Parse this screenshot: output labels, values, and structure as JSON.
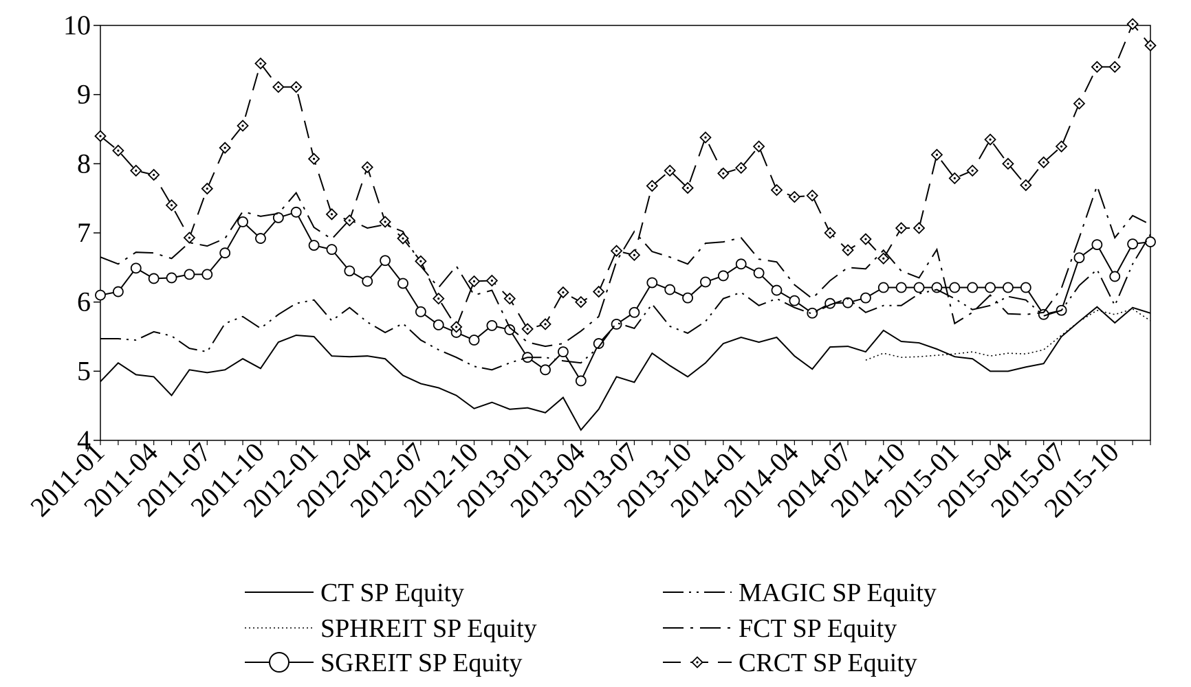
{
  "chart_data": {
    "type": "line",
    "title": "",
    "xlabel": "",
    "ylabel": "",
    "ylim": [
      4,
      10
    ],
    "yticks": [
      4,
      5,
      6,
      7,
      8,
      9,
      10
    ],
    "x": [
      "2011-01",
      "2011-02",
      "2011-03",
      "2011-04",
      "2011-05",
      "2011-06",
      "2011-07",
      "2011-08",
      "2011-09",
      "2011-10",
      "2011-11",
      "2011-12",
      "2012-01",
      "2012-02",
      "2012-03",
      "2012-04",
      "2012-05",
      "2012-06",
      "2012-07",
      "2012-08",
      "2012-09",
      "2012-10",
      "2012-11",
      "2012-12",
      "2013-01",
      "2013-02",
      "2013-03",
      "2013-04",
      "2013-05",
      "2013-06",
      "2013-07",
      "2013-08",
      "2013-09",
      "2013-10",
      "2013-11",
      "2013-12",
      "2014-01",
      "2014-02",
      "2014-03",
      "2014-04",
      "2014-05",
      "2014-06",
      "2014-07",
      "2014-08",
      "2014-09",
      "2014-10",
      "2014-11",
      "2014-12",
      "2015-01",
      "2015-02",
      "2015-03",
      "2015-04",
      "2015-05",
      "2015-06",
      "2015-07",
      "2015-08",
      "2015-09",
      "2015-10",
      "2015-11",
      "2015-12"
    ],
    "xtick_labels": [
      "2011-01",
      "2011-04",
      "2011-07",
      "2011-10",
      "2012-01",
      "2012-04",
      "2012-07",
      "2012-10",
      "2013-01",
      "2013-04",
      "2013-07",
      "2013-10",
      "2014-01",
      "2014-04",
      "2014-07",
      "2014-10",
      "2015-01",
      "2015-04",
      "2015-07",
      "2015-10"
    ],
    "grid": false,
    "legend_position": "bottom",
    "series": [
      {
        "name": "CT SP Equity",
        "style": "solid",
        "marker": "none",
        "values": [
          4.85,
          5.12,
          4.95,
          4.92,
          4.65,
          5.02,
          4.98,
          5.02,
          5.18,
          5.04,
          5.42,
          5.52,
          5.5,
          5.22,
          5.21,
          5.22,
          5.18,
          4.94,
          4.82,
          4.76,
          4.65,
          4.46,
          4.55,
          4.45,
          4.47,
          4.4,
          4.62,
          4.15,
          4.45,
          4.92,
          4.84,
          5.26,
          5.08,
          4.92,
          5.12,
          5.4,
          5.49,
          5.42,
          5.49,
          5.22,
          5.03,
          5.35,
          5.36,
          5.28,
          5.59,
          5.43,
          5.41,
          5.32,
          5.21,
          5.18,
          5.0,
          5.0,
          5.06,
          5.11,
          5.5,
          5.72,
          5.93,
          5.7,
          5.92,
          5.84
        ]
      },
      {
        "name": "SPHREIT SP Equity",
        "style": "dotted",
        "marker": "none",
        "values": [
          null,
          null,
          null,
          null,
          null,
          null,
          null,
          null,
          null,
          null,
          null,
          null,
          null,
          null,
          null,
          null,
          null,
          null,
          null,
          null,
          null,
          null,
          null,
          null,
          null,
          null,
          null,
          null,
          null,
          null,
          null,
          null,
          null,
          null,
          null,
          null,
          null,
          null,
          null,
          null,
          null,
          null,
          null,
          5.16,
          5.26,
          5.2,
          5.21,
          5.23,
          5.25,
          5.28,
          5.22,
          5.26,
          5.25,
          5.31,
          5.52,
          5.72,
          5.88,
          5.82,
          5.9,
          5.73
        ]
      },
      {
        "name": "SGREIT SP Equity",
        "style": "solid",
        "marker": "circle",
        "values": [
          6.1,
          6.15,
          6.49,
          6.34,
          6.35,
          6.4,
          6.4,
          6.71,
          7.16,
          6.92,
          7.22,
          7.3,
          6.82,
          6.76,
          6.45,
          6.3,
          6.6,
          6.27,
          5.86,
          5.67,
          5.56,
          5.45,
          5.66,
          5.6,
          5.2,
          5.02,
          5.28,
          4.86,
          5.4,
          5.68,
          5.85,
          6.28,
          6.18,
          6.06,
          6.29,
          6.38,
          6.55,
          6.42,
          6.17,
          6.02,
          5.84,
          5.98,
          5.99,
          6.06,
          6.21,
          6.21,
          6.21,
          6.21,
          6.21,
          6.21,
          6.21,
          6.21,
          6.21,
          5.82,
          5.88,
          6.64,
          6.83,
          6.37,
          6.84,
          6.87
        ]
      },
      {
        "name": "MAGIC SP Equity",
        "style": "dashdotdot",
        "marker": "none",
        "values": [
          5.47,
          5.47,
          5.45,
          5.57,
          5.51,
          5.33,
          5.28,
          5.69,
          5.79,
          5.62,
          5.82,
          5.98,
          6.03,
          5.73,
          5.92,
          5.71,
          5.56,
          5.69,
          5.45,
          5.31,
          5.2,
          5.07,
          5.02,
          5.12,
          5.2,
          5.2,
          5.15,
          5.12,
          5.35,
          5.7,
          5.62,
          5.97,
          5.65,
          5.55,
          5.72,
          6.05,
          6.14,
          5.95,
          6.05,
          5.92,
          5.83,
          5.96,
          6.05,
          5.85,
          5.95,
          5.95,
          6.12,
          6.18,
          6.05,
          5.89,
          5.95,
          6.08,
          6.03,
          5.8,
          5.88,
          6.24,
          6.47,
          5.95,
          6.55,
          6.98
        ]
      },
      {
        "name": "FCT SP Equity",
        "style": "dashdot",
        "marker": "none",
        "values": [
          6.65,
          6.55,
          6.72,
          6.71,
          6.63,
          6.86,
          6.81,
          6.92,
          7.31,
          7.24,
          7.28,
          7.58,
          7.08,
          6.91,
          7.19,
          7.07,
          7.12,
          7.02,
          6.52,
          6.21,
          6.52,
          6.1,
          6.17,
          5.63,
          5.42,
          5.36,
          5.4,
          5.58,
          5.79,
          6.59,
          7.02,
          6.73,
          6.65,
          6.55,
          6.85,
          6.87,
          6.93,
          6.62,
          6.58,
          6.25,
          6.05,
          6.31,
          6.5,
          6.48,
          6.75,
          6.45,
          6.35,
          6.76,
          5.69,
          5.85,
          6.1,
          5.83,
          5.82,
          5.85,
          6.2,
          6.93,
          7.68,
          6.93,
          7.25,
          7.12
        ]
      },
      {
        "name": "CRCT SP Equity",
        "style": "dashed",
        "marker": "diamond",
        "values": [
          8.4,
          8.19,
          7.9,
          7.84,
          7.4,
          6.93,
          7.64,
          8.23,
          8.55,
          9.45,
          9.11,
          9.11,
          8.07,
          7.27,
          7.18,
          7.95,
          7.16,
          6.92,
          6.59,
          6.05,
          5.64,
          6.3,
          6.31,
          6.05,
          5.61,
          5.68,
          6.14,
          6.0,
          6.15,
          6.74,
          6.68,
          7.68,
          7.9,
          7.65,
          8.38,
          7.86,
          7.94,
          8.25,
          7.62,
          7.52,
          7.54,
          7.0,
          6.75,
          6.91,
          6.63,
          7.07,
          7.07,
          8.13,
          7.79,
          7.9,
          8.35,
          8.0,
          7.69,
          8.02,
          8.25,
          8.87,
          9.4,
          9.4,
          10.02,
          9.71
        ]
      }
    ]
  }
}
